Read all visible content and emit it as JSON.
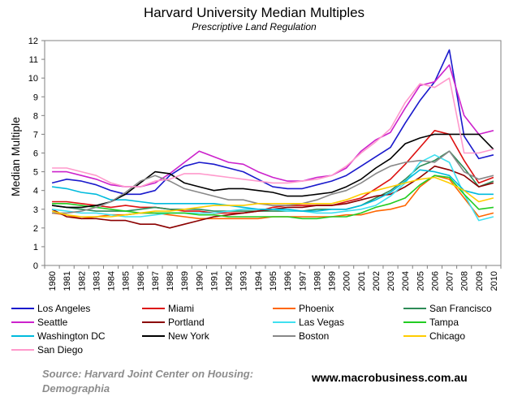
{
  "chart_data": {
    "type": "line",
    "title": "Harvard University Median Multiples",
    "subtitle": "Prescriptive Land Regulation",
    "xlabel": "",
    "ylabel": "Median Multiple",
    "ylim": [
      0,
      12
    ],
    "yticks": [
      0,
      1,
      2,
      3,
      4,
      5,
      6,
      7,
      8,
      9,
      10,
      11,
      12
    ],
    "grid": false,
    "legend_position": "bottom",
    "x": [
      "1980",
      "1981",
      "1982",
      "1983",
      "1984",
      "1985",
      "1986",
      "1987",
      "1988",
      "1989",
      "1990",
      "1991",
      "1992",
      "1993",
      "1994",
      "1995",
      "1996",
      "1997",
      "1998",
      "1999",
      "2000",
      "2001",
      "2002",
      "2003",
      "2004",
      "2005",
      "2006",
      "2007",
      "2008",
      "2009",
      "2010"
    ],
    "series": [
      {
        "name": "Los Angeles",
        "color": "#1a1acc",
        "values": [
          4.4,
          4.6,
          4.5,
          4.3,
          4.0,
          3.8,
          3.8,
          4.0,
          4.8,
          5.3,
          5.5,
          5.4,
          5.2,
          5.0,
          4.6,
          4.2,
          4.1,
          4.1,
          4.3,
          4.5,
          4.8,
          5.3,
          5.8,
          6.3,
          7.6,
          8.8,
          9.8,
          11.5,
          6.9,
          5.7,
          5.9
        ]
      },
      {
        "name": "Miami",
        "color": "#dd1111",
        "values": [
          3.4,
          3.4,
          3.3,
          3.2,
          3.1,
          3.2,
          3.1,
          3.1,
          3.0,
          2.9,
          2.9,
          2.8,
          2.8,
          2.8,
          2.9,
          3.1,
          3.2,
          3.2,
          3.2,
          3.2,
          3.4,
          3.6,
          4.1,
          4.6,
          5.4,
          6.3,
          7.2,
          7.0,
          5.6,
          4.4,
          4.7
        ]
      },
      {
        "name": "Phoenix",
        "color": "#ff6600",
        "values": [
          2.8,
          2.7,
          2.5,
          2.6,
          2.7,
          2.7,
          2.8,
          2.8,
          2.7,
          2.6,
          2.5,
          2.5,
          2.5,
          2.5,
          2.5,
          2.6,
          2.6,
          2.6,
          2.6,
          2.6,
          2.7,
          2.7,
          2.9,
          3.0,
          3.2,
          4.2,
          4.8,
          4.6,
          3.6,
          2.6,
          2.8
        ]
      },
      {
        "name": "San Francisco",
        "color": "#2e8b57",
        "values": [
          3.2,
          3.1,
          3.0,
          2.9,
          2.9,
          2.9,
          3.0,
          3.1,
          3.0,
          3.0,
          3.0,
          2.9,
          2.9,
          2.9,
          2.9,
          2.9,
          2.9,
          2.9,
          3.0,
          3.0,
          3.0,
          3.2,
          3.6,
          4.0,
          4.6,
          5.3,
          5.6,
          6.1,
          5.2,
          4.2,
          4.5
        ]
      },
      {
        "name": "Seattle",
        "color": "#cc22cc",
        "values": [
          5.0,
          5.0,
          4.8,
          4.6,
          4.3,
          4.2,
          4.2,
          4.4,
          4.9,
          5.5,
          6.1,
          5.8,
          5.5,
          5.4,
          5.0,
          4.7,
          4.5,
          4.5,
          4.7,
          4.8,
          5.2,
          6.1,
          6.7,
          7.1,
          8.4,
          9.6,
          9.8,
          10.7,
          8.0,
          7.0,
          7.2
        ]
      },
      {
        "name": "Portland",
        "color": "#8b0000",
        "values": [
          3.0,
          2.6,
          2.5,
          2.5,
          2.4,
          2.4,
          2.2,
          2.2,
          2.0,
          2.2,
          2.4,
          2.6,
          2.7,
          2.8,
          2.9,
          3.0,
          3.1,
          3.1,
          3.2,
          3.2,
          3.3,
          3.5,
          3.7,
          3.8,
          4.2,
          4.7,
          5.3,
          5.1,
          4.8,
          4.2,
          4.4
        ]
      },
      {
        "name": "Las Vegas",
        "color": "#40e0f0",
        "values": [
          3.0,
          2.9,
          2.8,
          2.8,
          2.7,
          2.6,
          2.6,
          2.7,
          2.8,
          2.8,
          2.8,
          2.8,
          2.9,
          3.0,
          3.0,
          3.0,
          2.9,
          2.9,
          2.8,
          2.8,
          2.9,
          3.0,
          3.2,
          3.7,
          4.4,
          5.5,
          5.9,
          5.5,
          3.8,
          2.4,
          2.6
        ]
      },
      {
        "name": "Tampa",
        "color": "#22cc22",
        "values": [
          3.3,
          3.3,
          3.2,
          3.1,
          3.0,
          2.9,
          2.8,
          2.8,
          2.8,
          2.8,
          2.7,
          2.7,
          2.6,
          2.6,
          2.6,
          2.6,
          2.6,
          2.5,
          2.5,
          2.6,
          2.6,
          2.8,
          3.1,
          3.3,
          3.6,
          4.3,
          4.8,
          4.7,
          3.8,
          3.0,
          3.1
        ]
      },
      {
        "name": "Washington DC",
        "color": "#00bbdd",
        "values": [
          4.2,
          4.1,
          3.9,
          3.8,
          3.5,
          3.5,
          3.4,
          3.3,
          3.3,
          3.3,
          3.3,
          3.3,
          3.2,
          3.1,
          3.0,
          3.0,
          3.0,
          2.9,
          2.9,
          3.0,
          3.0,
          3.2,
          3.5,
          3.9,
          4.5,
          5.1,
          5.0,
          4.8,
          4.0,
          3.8,
          3.8
        ]
      },
      {
        "name": "New York",
        "color": "#000000",
        "values": [
          3.2,
          3.1,
          3.1,
          3.2,
          3.4,
          3.8,
          4.4,
          5.0,
          4.9,
          4.4,
          4.2,
          4.0,
          4.1,
          4.1,
          4.0,
          3.9,
          3.7,
          3.7,
          3.8,
          3.9,
          4.2,
          4.6,
          5.2,
          5.7,
          6.5,
          6.8,
          7.0,
          7.0,
          7.0,
          7.0,
          6.2
        ]
      },
      {
        "name": "Boston",
        "color": "#888888",
        "values": [
          2.8,
          2.8,
          2.9,
          3.1,
          3.4,
          3.9,
          4.5,
          4.8,
          4.5,
          4.1,
          3.9,
          3.7,
          3.5,
          3.5,
          3.3,
          3.2,
          3.2,
          3.3,
          3.5,
          3.8,
          4.0,
          4.4,
          4.9,
          5.3,
          5.5,
          5.6,
          5.5,
          6.1,
          5.0,
          4.6,
          4.8
        ]
      },
      {
        "name": "Chicago",
        "color": "#ffcc00",
        "values": [
          2.9,
          2.7,
          2.6,
          2.6,
          2.6,
          2.7,
          2.8,
          2.9,
          2.9,
          3.0,
          3.1,
          3.2,
          3.2,
          3.2,
          3.3,
          3.3,
          3.3,
          3.3,
          3.3,
          3.3,
          3.5,
          3.8,
          4.0,
          4.2,
          4.4,
          4.6,
          4.7,
          4.4,
          4.0,
          3.4,
          3.6
        ]
      },
      {
        "name": "San Diego",
        "color": "#ff99cc",
        "values": [
          5.2,
          5.2,
          5.0,
          4.8,
          4.4,
          4.2,
          4.2,
          4.5,
          4.6,
          4.9,
          4.9,
          4.8,
          4.7,
          4.6,
          4.5,
          4.4,
          4.4,
          4.5,
          4.6,
          4.8,
          5.3,
          6.0,
          6.6,
          7.3,
          8.7,
          9.7,
          9.5,
          10.0,
          6.0,
          6.0,
          6.2
        ]
      }
    ]
  },
  "source": {
    "line1": "Source: Harvard Joint Center on Housing:",
    "line2": "Demographia"
  },
  "website": "www.macrobusiness.com.au"
}
